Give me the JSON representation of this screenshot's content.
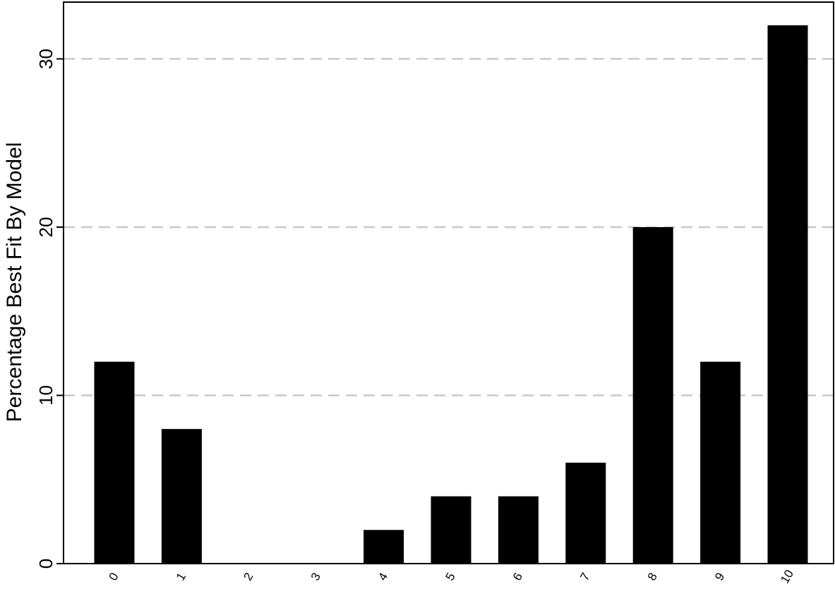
{
  "chart_data": {
    "type": "bar",
    "title": "",
    "xlabel": "",
    "ylabel": "Percentage Best Fit By Model",
    "categories": [
      "0",
      "1",
      "2",
      "3",
      "4",
      "5",
      "6",
      "7",
      "8",
      "9",
      "10"
    ],
    "values": [
      12,
      8,
      0,
      0,
      2,
      4,
      4,
      6,
      20,
      12,
      32
    ],
    "ylim": [
      0,
      33
    ],
    "yticks": [
      "0",
      "10",
      "20",
      "30"
    ],
    "grid": "horizontal dashed",
    "colors": {
      "bar": "#000000",
      "grid": "#c8c8c8",
      "axis": "#000000"
    }
  }
}
